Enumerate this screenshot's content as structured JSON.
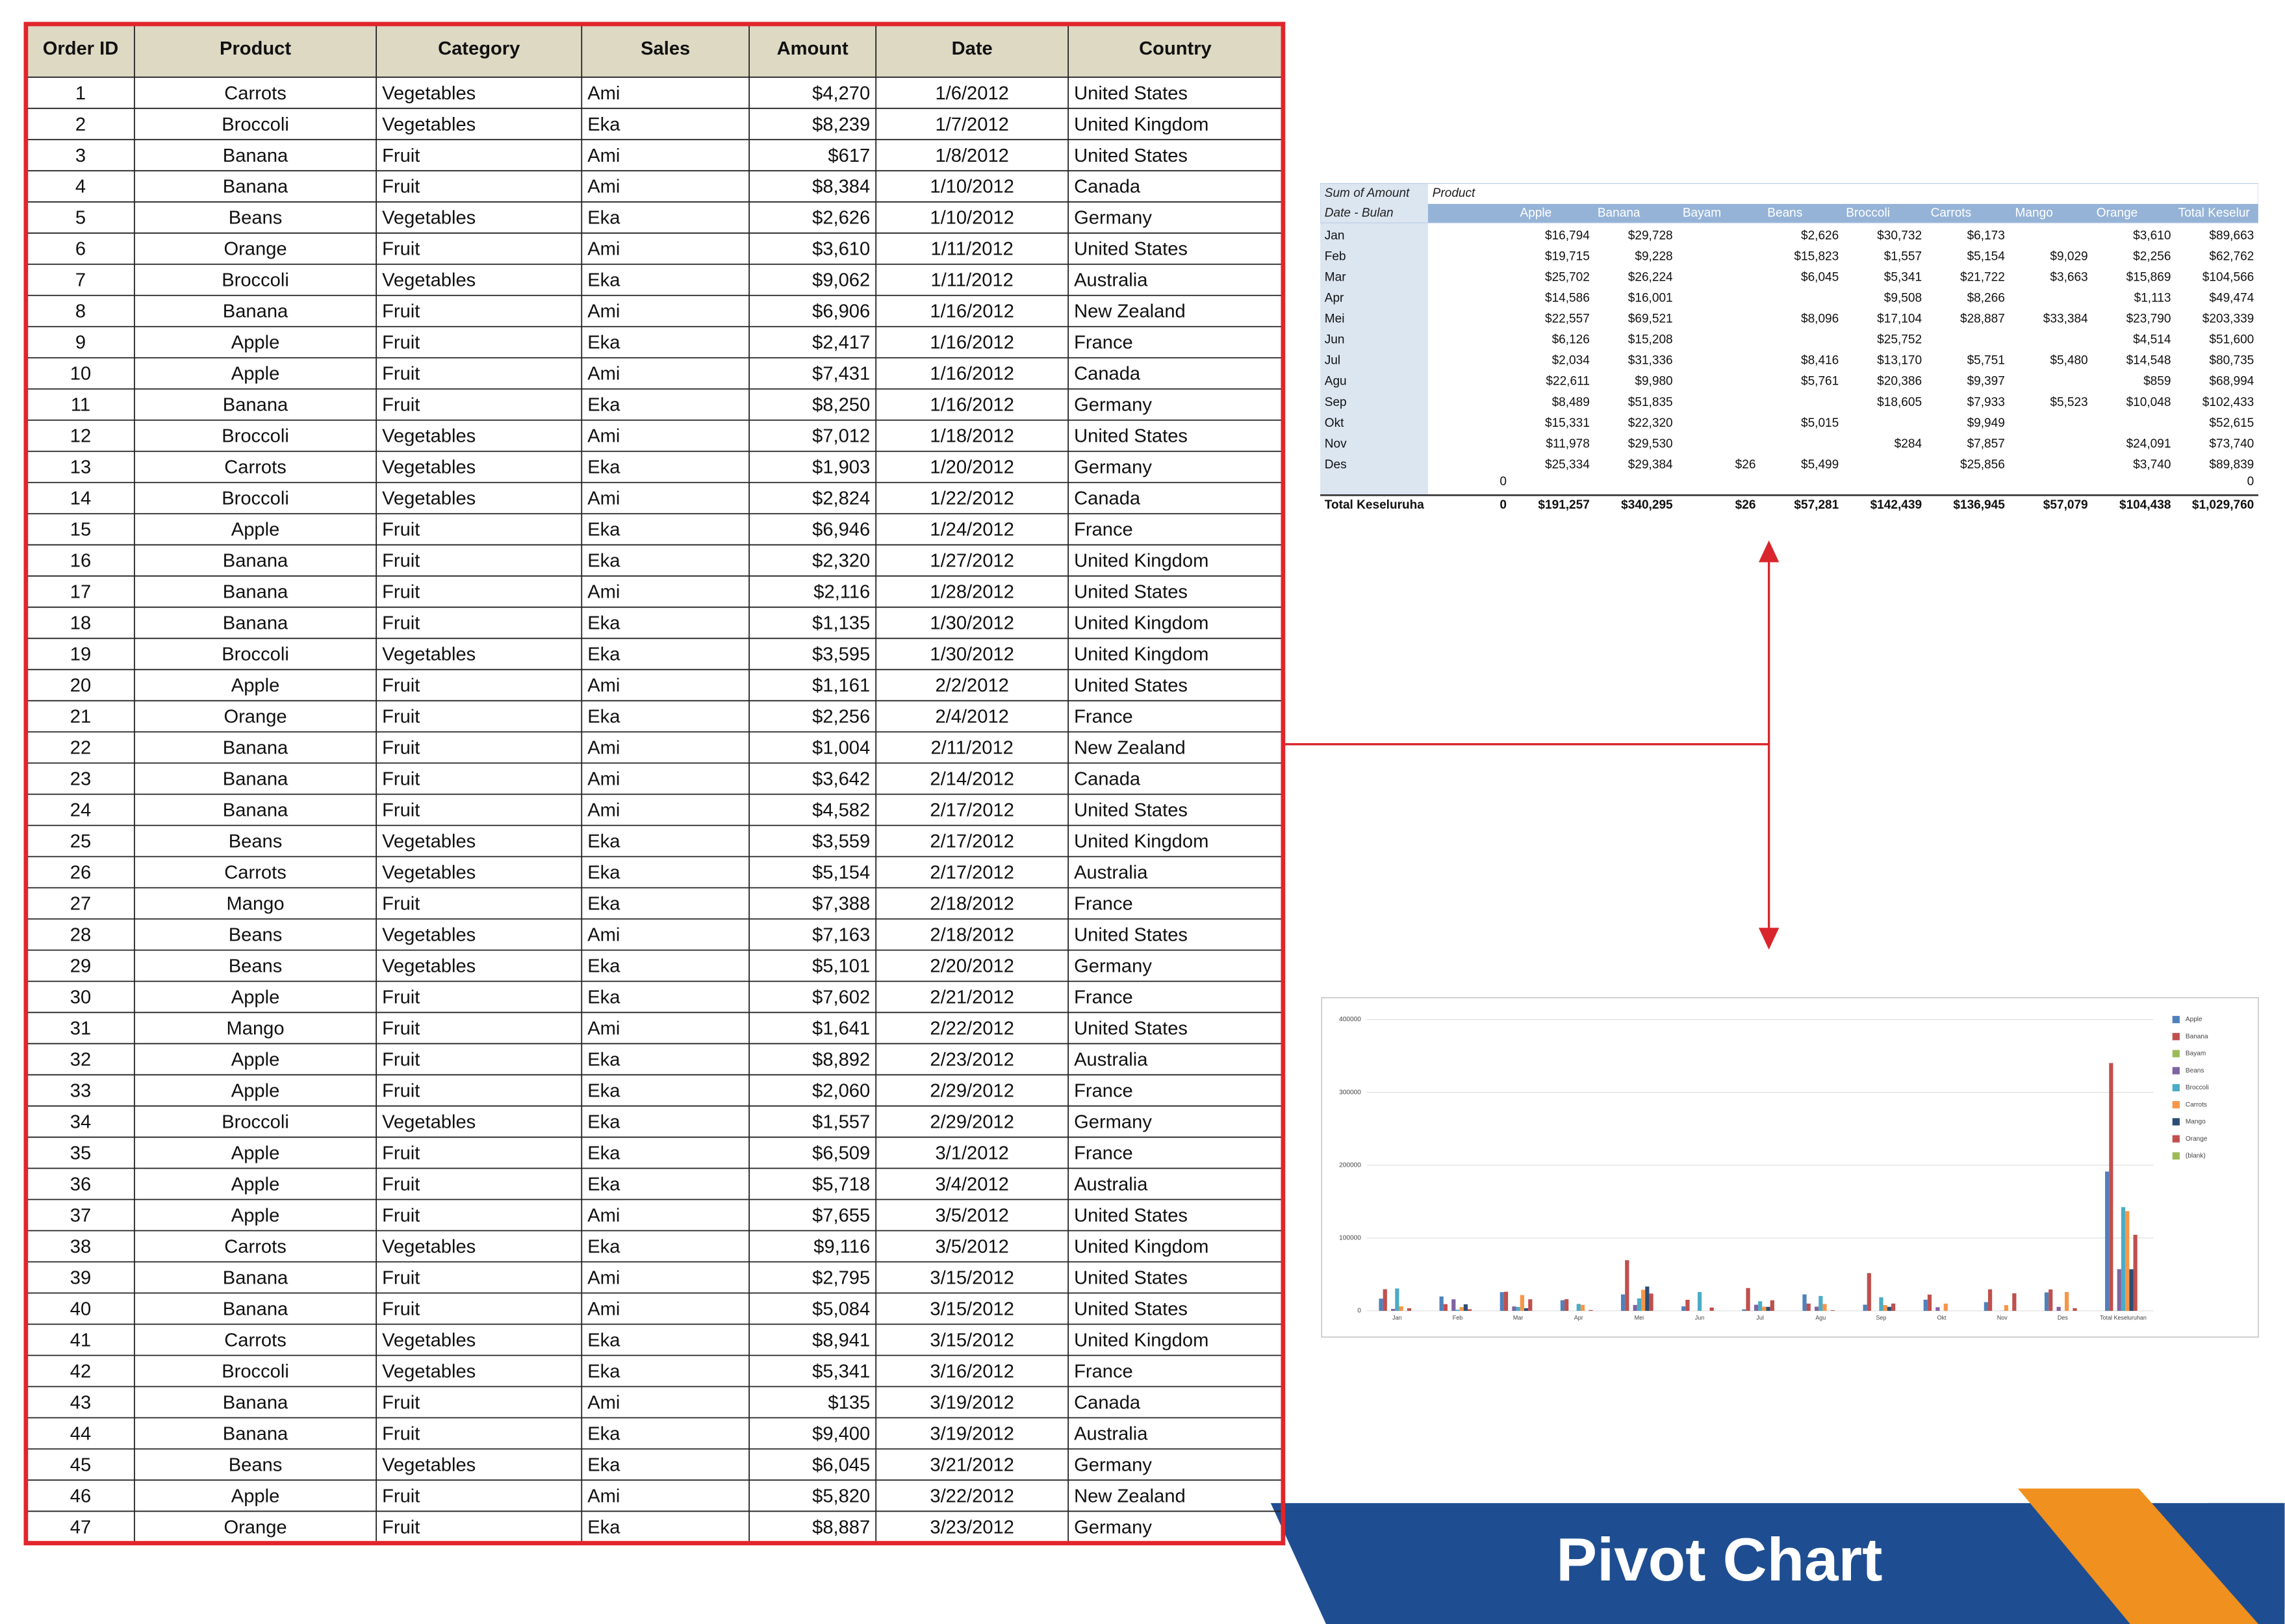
{
  "table": {
    "columns": [
      "Order ID",
      "Product",
      "Category",
      "Sales",
      "Amount",
      "Date",
      "Country"
    ],
    "rows": [
      [
        "1",
        "Carrots",
        "Vegetables",
        "Ami",
        "$4,270",
        "1/6/2012",
        "United States"
      ],
      [
        "2",
        "Broccoli",
        "Vegetables",
        "Eka",
        "$8,239",
        "1/7/2012",
        "United Kingdom"
      ],
      [
        "3",
        "Banana",
        "Fruit",
        "Ami",
        "$617",
        "1/8/2012",
        "United States"
      ],
      [
        "4",
        "Banana",
        "Fruit",
        "Ami",
        "$8,384",
        "1/10/2012",
        "Canada"
      ],
      [
        "5",
        "Beans",
        "Vegetables",
        "Eka",
        "$2,626",
        "1/10/2012",
        "Germany"
      ],
      [
        "6",
        "Orange",
        "Fruit",
        "Ami",
        "$3,610",
        "1/11/2012",
        "United States"
      ],
      [
        "7",
        "Broccoli",
        "Vegetables",
        "Eka",
        "$9,062",
        "1/11/2012",
        "Australia"
      ],
      [
        "8",
        "Banana",
        "Fruit",
        "Ami",
        "$6,906",
        "1/16/2012",
        "New Zealand"
      ],
      [
        "9",
        "Apple",
        "Fruit",
        "Eka",
        "$2,417",
        "1/16/2012",
        "France"
      ],
      [
        "10",
        "Apple",
        "Fruit",
        "Ami",
        "$7,431",
        "1/16/2012",
        "Canada"
      ],
      [
        "11",
        "Banana",
        "Fruit",
        "Eka",
        "$8,250",
        "1/16/2012",
        "Germany"
      ],
      [
        "12",
        "Broccoli",
        "Vegetables",
        "Ami",
        "$7,012",
        "1/18/2012",
        "United States"
      ],
      [
        "13",
        "Carrots",
        "Vegetables",
        "Eka",
        "$1,903",
        "1/20/2012",
        "Germany"
      ],
      [
        "14",
        "Broccoli",
        "Vegetables",
        "Ami",
        "$2,824",
        "1/22/2012",
        "Canada"
      ],
      [
        "15",
        "Apple",
        "Fruit",
        "Eka",
        "$6,946",
        "1/24/2012",
        "France"
      ],
      [
        "16",
        "Banana",
        "Fruit",
        "Eka",
        "$2,320",
        "1/27/2012",
        "United Kingdom"
      ],
      [
        "17",
        "Banana",
        "Fruit",
        "Ami",
        "$2,116",
        "1/28/2012",
        "United States"
      ],
      [
        "18",
        "Banana",
        "Fruit",
        "Eka",
        "$1,135",
        "1/30/2012",
        "United Kingdom"
      ],
      [
        "19",
        "Broccoli",
        "Vegetables",
        "Eka",
        "$3,595",
        "1/30/2012",
        "United Kingdom"
      ],
      [
        "20",
        "Apple",
        "Fruit",
        "Ami",
        "$1,161",
        "2/2/2012",
        "United States"
      ],
      [
        "21",
        "Orange",
        "Fruit",
        "Eka",
        "$2,256",
        "2/4/2012",
        "France"
      ],
      [
        "22",
        "Banana",
        "Fruit",
        "Ami",
        "$1,004",
        "2/11/2012",
        "New Zealand"
      ],
      [
        "23",
        "Banana",
        "Fruit",
        "Ami",
        "$3,642",
        "2/14/2012",
        "Canada"
      ],
      [
        "24",
        "Banana",
        "Fruit",
        "Ami",
        "$4,582",
        "2/17/2012",
        "United States"
      ],
      [
        "25",
        "Beans",
        "Vegetables",
        "Eka",
        "$3,559",
        "2/17/2012",
        "United Kingdom"
      ],
      [
        "26",
        "Carrots",
        "Vegetables",
        "Eka",
        "$5,154",
        "2/17/2012",
        "Australia"
      ],
      [
        "27",
        "Mango",
        "Fruit",
        "Eka",
        "$7,388",
        "2/18/2012",
        "France"
      ],
      [
        "28",
        "Beans",
        "Vegetables",
        "Ami",
        "$7,163",
        "2/18/2012",
        "United States"
      ],
      [
        "29",
        "Beans",
        "Vegetables",
        "Eka",
        "$5,101",
        "2/20/2012",
        "Germany"
      ],
      [
        "30",
        "Apple",
        "Fruit",
        "Eka",
        "$7,602",
        "2/21/2012",
        "France"
      ],
      [
        "31",
        "Mango",
        "Fruit",
        "Ami",
        "$1,641",
        "2/22/2012",
        "United States"
      ],
      [
        "32",
        "Apple",
        "Fruit",
        "Eka",
        "$8,892",
        "2/23/2012",
        "Australia"
      ],
      [
        "33",
        "Apple",
        "Fruit",
        "Eka",
        "$2,060",
        "2/29/2012",
        "France"
      ],
      [
        "34",
        "Broccoli",
        "Vegetables",
        "Eka",
        "$1,557",
        "2/29/2012",
        "Germany"
      ],
      [
        "35",
        "Apple",
        "Fruit",
        "Eka",
        "$6,509",
        "3/1/2012",
        "France"
      ],
      [
        "36",
        "Apple",
        "Fruit",
        "Eka",
        "$5,718",
        "3/4/2012",
        "Australia"
      ],
      [
        "37",
        "Apple",
        "Fruit",
        "Ami",
        "$7,655",
        "3/5/2012",
        "United States"
      ],
      [
        "38",
        "Carrots",
        "Vegetables",
        "Eka",
        "$9,116",
        "3/5/2012",
        "United Kingdom"
      ],
      [
        "39",
        "Banana",
        "Fruit",
        "Ami",
        "$2,795",
        "3/15/2012",
        "United States"
      ],
      [
        "40",
        "Banana",
        "Fruit",
        "Ami",
        "$5,084",
        "3/15/2012",
        "United States"
      ],
      [
        "41",
        "Carrots",
        "Vegetables",
        "Eka",
        "$8,941",
        "3/15/2012",
        "United Kingdom"
      ],
      [
        "42",
        "Broccoli",
        "Vegetables",
        "Eka",
        "$5,341",
        "3/16/2012",
        "France"
      ],
      [
        "43",
        "Banana",
        "Fruit",
        "Ami",
        "$135",
        "3/19/2012",
        "Canada"
      ],
      [
        "44",
        "Banana",
        "Fruit",
        "Eka",
        "$9,400",
        "3/19/2012",
        "Australia"
      ],
      [
        "45",
        "Beans",
        "Vegetables",
        "Eka",
        "$6,045",
        "3/21/2012",
        "Germany"
      ],
      [
        "46",
        "Apple",
        "Fruit",
        "Ami",
        "$5,820",
        "3/22/2012",
        "New Zealand"
      ],
      [
        "47",
        "Orange",
        "Fruit",
        "Eka",
        "$8,887",
        "3/23/2012",
        "Germany"
      ]
    ]
  },
  "pivot": {
    "corner": "Sum of Amount",
    "column_field": "Product",
    "row_field": "Date - Bulan",
    "columns": [
      null,
      "Apple",
      "Banana",
      "Bayam",
      "Beans",
      "Broccoli",
      "Carrots",
      "Mango",
      "Orange",
      "Total Keselur"
    ],
    "rows": [
      {
        "label": "Jan",
        "cells": [
          null,
          "$16,794",
          "$29,728",
          null,
          "$2,626",
          "$30,732",
          "$6,173",
          null,
          "$3,610",
          "$89,663"
        ]
      },
      {
        "label": "Feb",
        "cells": [
          null,
          "$19,715",
          "$9,228",
          null,
          "$15,823",
          "$1,557",
          "$5,154",
          "$9,029",
          "$2,256",
          "$62,762"
        ]
      },
      {
        "label": "Mar",
        "cells": [
          null,
          "$25,702",
          "$26,224",
          null,
          "$6,045",
          "$5,341",
          "$21,722",
          "$3,663",
          "$15,869",
          "$104,566"
        ]
      },
      {
        "label": "Apr",
        "cells": [
          null,
          "$14,586",
          "$16,001",
          null,
          null,
          "$9,508",
          "$8,266",
          null,
          "$1,113",
          "$49,474"
        ]
      },
      {
        "label": "Mei",
        "cells": [
          null,
          "$22,557",
          "$69,521",
          null,
          "$8,096",
          "$17,104",
          "$28,887",
          "$33,384",
          "$23,790",
          "$203,339"
        ]
      },
      {
        "label": "Jun",
        "cells": [
          null,
          "$6,126",
          "$15,208",
          null,
          null,
          "$25,752",
          null,
          null,
          "$4,514",
          "$51,600"
        ]
      },
      {
        "label": "Jul",
        "cells": [
          null,
          "$2,034",
          "$31,336",
          null,
          "$8,416",
          "$13,170",
          "$5,751",
          "$5,480",
          "$14,548",
          "$80,735"
        ]
      },
      {
        "label": "Agu",
        "cells": [
          null,
          "$22,611",
          "$9,980",
          null,
          "$5,761",
          "$20,386",
          "$9,397",
          null,
          "$859",
          "$68,994"
        ]
      },
      {
        "label": "Sep",
        "cells": [
          null,
          "$8,489",
          "$51,835",
          null,
          null,
          "$18,605",
          "$7,933",
          "$5,523",
          "$10,048",
          "$102,433"
        ]
      },
      {
        "label": "Okt",
        "cells": [
          null,
          "$15,331",
          "$22,320",
          null,
          "$5,015",
          null,
          "$9,949",
          null,
          null,
          "$52,615"
        ]
      },
      {
        "label": "Nov",
        "cells": [
          null,
          "$11,978",
          "$29,530",
          null,
          null,
          "$284",
          "$7,857",
          null,
          "$24,091",
          "$73,740"
        ]
      },
      {
        "label": "Des",
        "cells": [
          null,
          "$25,334",
          "$29,384",
          "$26",
          "$5,499",
          null,
          "$25,856",
          null,
          "$3,740",
          "$89,839"
        ]
      },
      {
        "label": null,
        "cells": [
          "0",
          null,
          null,
          null,
          null,
          null,
          null,
          null,
          null,
          "0"
        ]
      }
    ],
    "total": {
      "label": "Total Keseluruha",
      "cells": [
        "0",
        "$191,257",
        "$340,295",
        "$26",
        "$57,281",
        "$142,439",
        "$136,945",
        "$57,079",
        "$104,438",
        "$1,029,760"
      ]
    }
  },
  "chart_data": {
    "type": "bar",
    "categories": [
      "Jan",
      "Feb",
      "Mar",
      "Apr",
      "Mei",
      "Jun",
      "Jul",
      "Agu",
      "Sep",
      "Okt",
      "Nov",
      "Des",
      "Total Keseluruhan"
    ],
    "ylim": [
      0,
      400000
    ],
    "yticks": [
      0,
      100000,
      200000,
      300000,
      400000
    ],
    "grid": true,
    "legend": "right",
    "series": [
      {
        "name": "Apple",
        "color": "#4f81bd",
        "values": [
          16794,
          19715,
          25702,
          14586,
          22557,
          6126,
          2034,
          22611,
          8489,
          15331,
          11978,
          25334,
          191257
        ]
      },
      {
        "name": "Banana",
        "color": "#c0504d",
        "values": [
          29728,
          9228,
          26224,
          16001,
          69521,
          15208,
          31336,
          9980,
          51835,
          22320,
          29530,
          29384,
          340295
        ]
      },
      {
        "name": "Bayam",
        "color": "#9bbb59",
        "values": [
          null,
          null,
          null,
          null,
          null,
          null,
          null,
          null,
          null,
          null,
          null,
          26,
          26
        ]
      },
      {
        "name": "Beans",
        "color": "#8064a2",
        "values": [
          2626,
          15823,
          6045,
          null,
          8096,
          null,
          8416,
          5761,
          null,
          5015,
          null,
          5499,
          57281
        ]
      },
      {
        "name": "Broccoli",
        "color": "#4bacc6",
        "values": [
          30732,
          1557,
          5341,
          9508,
          17104,
          25752,
          13170,
          20386,
          18605,
          null,
          284,
          null,
          142439
        ]
      },
      {
        "name": "Carrots",
        "color": "#f79646",
        "values": [
          6173,
          5154,
          21722,
          8266,
          28887,
          null,
          5751,
          9397,
          7933,
          9949,
          7857,
          25856,
          136945
        ]
      },
      {
        "name": "Mango",
        "color": "#2c4d75",
        "values": [
          null,
          9029,
          3663,
          null,
          33384,
          null,
          5480,
          null,
          5523,
          null,
          null,
          null,
          57079
        ]
      },
      {
        "name": "Orange",
        "color": "#c0504d",
        "values": [
          3610,
          2256,
          15869,
          1113,
          23790,
          4514,
          14548,
          859,
          10048,
          null,
          24091,
          3740,
          104438
        ]
      },
      {
        "name": "(blank)",
        "color": "#9bbb59",
        "values": [
          null,
          null,
          null,
          null,
          null,
          null,
          null,
          null,
          null,
          null,
          null,
          null,
          0
        ]
      }
    ]
  },
  "banner": {
    "title": "Pivot Chart"
  }
}
